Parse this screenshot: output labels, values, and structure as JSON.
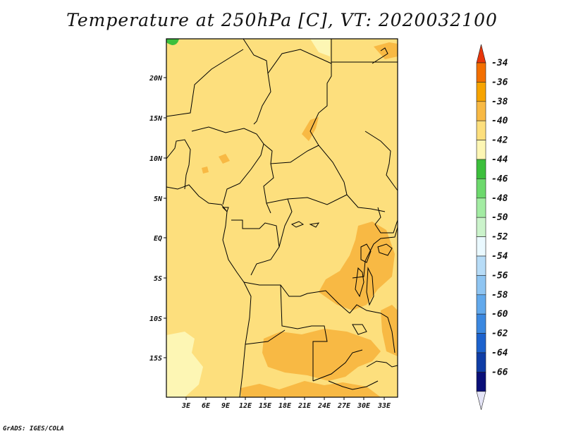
{
  "title": "Temperature at 250hPa [C], VT: 2020032100",
  "credit": "GrADS: IGES/COLA",
  "map": {
    "lat_ticks": [
      "20N",
      "15N",
      "10N",
      "5N",
      "EQ",
      "5S",
      "10S",
      "15S"
    ],
    "lon_ticks": [
      "3E",
      "6E",
      "9E",
      "12E",
      "15E",
      "18E",
      "21E",
      "24E",
      "27E",
      "30E",
      "33E"
    ]
  },
  "colorbar": {
    "labels": [
      "-34",
      "-36",
      "-38",
      "-40",
      "-42",
      "-44",
      "-46",
      "-48",
      "-50",
      "-52",
      "-54",
      "-56",
      "-58",
      "-60",
      "-62",
      "-64",
      "-66"
    ],
    "colors": [
      "#e8360b",
      "#f36f00",
      "#f7a400",
      "#f8b944",
      "#fddf7d",
      "#fdf6b4",
      "#3cbf3c",
      "#6dd96d",
      "#a3eca3",
      "#cbf3cb",
      "#eaf9ff",
      "#b7dcf7",
      "#8fc5f2",
      "#62a9ec",
      "#3b88e0",
      "#1c62cd",
      "#0f3da6",
      "#0a0f78",
      "#e4e4f6"
    ]
  }
}
